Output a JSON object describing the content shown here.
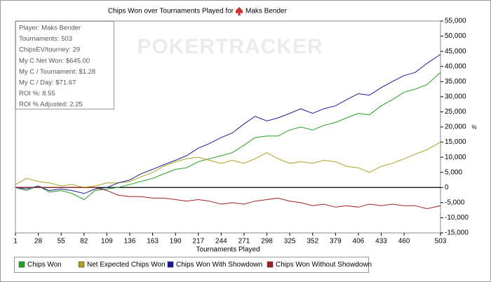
{
  "chart_data": {
    "type": "line",
    "title_prefix": "Chips Won over Tournaments Played for",
    "title_player": "Maks Bender",
    "watermark": "POKERTRACKER",
    "info_box": [
      "Player: Maks Bender",
      "Tournaments: 503",
      "ChipsEV/tourney: 29",
      "My C Net Won: $645.00",
      "My C / Tournament: $1.28",
      "My C / Day: $71.67",
      "ROI %: 8.55",
      "ROI % Adjusted: 2.25"
    ],
    "xlabel": "Tournaments Played",
    "ylabel": "%",
    "xlim": [
      1,
      503
    ],
    "xticks": [
      1,
      28,
      55,
      82,
      109,
      136,
      163,
      190,
      217,
      244,
      271,
      298,
      325,
      352,
      379,
      406,
      433,
      460,
      503
    ],
    "ylim": [
      -15000,
      55000
    ],
    "yticks": [
      {
        "value": -15000,
        "label": "-15,000"
      },
      {
        "value": -10000,
        "label": "-10,000"
      },
      {
        "value": -5000,
        "label": "-5,000"
      },
      0,
      {
        "value": 5000,
        "label": "5,000"
      },
      {
        "value": 10000,
        "label": "10,000"
      },
      {
        "value": 15000,
        "label": "15,000"
      },
      {
        "value": 20000,
        "label": "20,000"
      },
      {
        "value": 25000,
        "label": "25,000"
      },
      {
        "value": 30000,
        "label": "30,000"
      },
      {
        "value": 35000,
        "label": "35,000"
      },
      {
        "value": 40000,
        "label": "40,000"
      },
      {
        "value": 45000,
        "label": "45,000"
      },
      {
        "value": 50000,
        "label": "50,000"
      },
      {
        "value": 55000,
        "label": "55,000"
      }
    ],
    "grid": false,
    "legend": "bottom",
    "x": [
      1,
      14,
      28,
      41,
      55,
      68,
      82,
      95,
      109,
      122,
      136,
      149,
      163,
      176,
      190,
      203,
      217,
      230,
      244,
      257,
      271,
      284,
      298,
      311,
      325,
      338,
      352,
      365,
      379,
      392,
      406,
      419,
      433,
      446,
      460,
      473,
      487,
      503
    ],
    "series": [
      {
        "name": "Chips Won",
        "color": "#22a022",
        "values": [
          0,
          -1000,
          500,
          -1500,
          -1000,
          -2000,
          -4000,
          -1000,
          -500,
          0,
          1000,
          2000,
          3000,
          4500,
          6000,
          6500,
          8500,
          9500,
          10500,
          11500,
          14000,
          16500,
          17000,
          17000,
          19000,
          20000,
          19000,
          20500,
          21500,
          23000,
          24500,
          24000,
          27000,
          29000,
          31500,
          32500,
          34000,
          38000
        ]
      },
      {
        "name": "Net Expected Chips Won",
        "color": "#b0a020",
        "values": [
          1000,
          3000,
          2000,
          1500,
          500,
          1000,
          0,
          500,
          1500,
          1500,
          2000,
          3500,
          5000,
          7000,
          8500,
          9500,
          10000,
          9000,
          8000,
          9000,
          8000,
          9500,
          11500,
          9500,
          8000,
          8500,
          8000,
          9000,
          8500,
          7000,
          6500,
          5000,
          7000,
          8000,
          9500,
          11000,
          12500,
          15000
        ]
      },
      {
        "name": "Chips Won With Showdown",
        "color": "#1a1aa0",
        "values": [
          0,
          -500,
          500,
          -1000,
          -500,
          -1000,
          -2000,
          -500,
          0,
          1500,
          2500,
          4500,
          6000,
          7500,
          9000,
          10500,
          13000,
          14500,
          16500,
          18000,
          21000,
          23500,
          22000,
          23000,
          24500,
          26000,
          24500,
          26000,
          27000,
          29000,
          31000,
          30500,
          33000,
          35000,
          37000,
          38000,
          41000,
          44000
        ]
      },
      {
        "name": "Chips Won Without Showdown",
        "color": "#a02020",
        "values": [
          0,
          0,
          0,
          0,
          0,
          0,
          0,
          0,
          -1000,
          -2500,
          -3000,
          -3000,
          -3500,
          -3500,
          -4000,
          -4500,
          -4000,
          -4500,
          -5500,
          -5000,
          -5500,
          -4500,
          -4000,
          -3500,
          -4500,
          -5000,
          -6000,
          -5500,
          -6500,
          -6000,
          -6500,
          -5500,
          -6000,
          -5500,
          -6000,
          -6000,
          -7000,
          -6000
        ]
      }
    ]
  }
}
